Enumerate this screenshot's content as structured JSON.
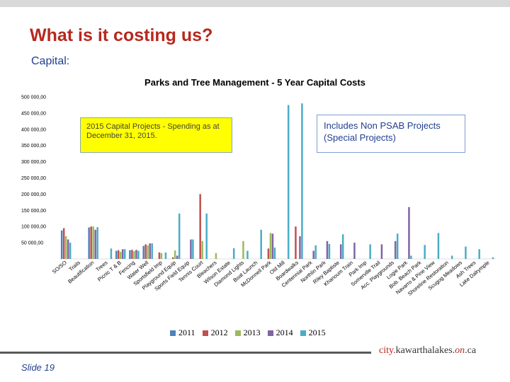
{
  "slide": {
    "title": "What is it costing us?",
    "subtitle": "Capital:",
    "footer_url_prefix": "city.",
    "footer_url_brand": "kawarthalakes",
    "footer_url_mid": ".",
    "footer_url_on": "on",
    "footer_url_suffix": ".ca",
    "slide_number": "Slide 19",
    "callout_left": "2015 Capital Projects - Spending as at December 31, 2015.",
    "callout_right": "Includes Non PSAB Projects (Special Projects)"
  },
  "colors": {
    "title": "#b7281f",
    "text_blue": "#1f3f8f",
    "callout_fill": "#ffff00"
  },
  "chart_data": {
    "type": "bar",
    "title": "Parks and Tree Management - 5 Year Capital Costs",
    "xlabel": "",
    "ylabel": "",
    "ylim": [
      0,
      500000
    ],
    "yticks": [
      "500 000,00",
      "450 000,00",
      "400 000,00",
      "350 000,00",
      "300 000,00",
      "250 000,00",
      "200 000,00",
      "150 000,00",
      "100 000,00",
      "50 000,00"
    ],
    "grid": false,
    "legend_position": "bottom",
    "categories": [
      "SO/SO",
      "Trails",
      "Beautification",
      "Trees",
      "Picnic T & B",
      "Fencing",
      "Water Well",
      "Sportsfield Imp",
      "Playground Equip",
      "Sports Field Equip",
      "Tennis Court",
      "Bleachers",
      "Wilson Estate",
      "Diamond Lights",
      "Boat Launch",
      "McDonnell Park",
      "Old Mill",
      "Boardwalks",
      "Centennial Park",
      "Northlin Park",
      "Riley Baptiste",
      "Khanoum Train",
      "Park Imp",
      "Somerville Trail",
      "Acc. Playgrounds",
      "Logie Park",
      "Bob. Beach Park",
      "Navarro & Pine View",
      "Shoreline Restoration",
      "Scugog Meadows",
      "Ash Trees",
      "Lake Dalrymple"
    ],
    "series": [
      {
        "name": "2011",
        "color": "#4f81bd",
        "values": [
          88000,
          0,
          97000,
          0,
          25000,
          27000,
          40000,
          0,
          0,
          0,
          0,
          0,
          0,
          0,
          0,
          0,
          0,
          0,
          0,
          0,
          0,
          0,
          0,
          0,
          0,
          0,
          0,
          0,
          0,
          0,
          0,
          0
        ]
      },
      {
        "name": "2012",
        "color": "#c0504d",
        "values": [
          95000,
          0,
          100000,
          0,
          27000,
          28000,
          45000,
          20000,
          5000,
          0,
          200000,
          0,
          0,
          0,
          0,
          32000,
          0,
          100000,
          0,
          0,
          0,
          0,
          0,
          0,
          0,
          0,
          0,
          0,
          0,
          0,
          0,
          0
        ]
      },
      {
        "name": "2013",
        "color": "#9bbb59",
        "values": [
          70000,
          0,
          100000,
          0,
          22000,
          24000,
          42000,
          18000,
          26000,
          0,
          55000,
          18000,
          0,
          55000,
          0,
          80000,
          0,
          0,
          0,
          0,
          0,
          0,
          0,
          0,
          0,
          0,
          0,
          0,
          0,
          0,
          0,
          0
        ]
      },
      {
        "name": "2014",
        "color": "#8064a2",
        "values": [
          60000,
          0,
          90000,
          0,
          30000,
          28000,
          48000,
          0,
          10000,
          60000,
          0,
          0,
          0,
          0,
          0,
          78000,
          0,
          70000,
          25000,
          55000,
          45000,
          50000,
          0,
          45000,
          55000,
          160000,
          0,
          0,
          0,
          0,
          0,
          0
        ]
      },
      {
        "name": "2015",
        "color": "#4bacc6",
        "values": [
          50000,
          0,
          98000,
          32000,
          30000,
          25000,
          48000,
          20000,
          140000,
          60000,
          140000,
          0,
          33000,
          25000,
          90000,
          35000,
          475000,
          480000,
          42000,
          46000,
          76000,
          0,
          45000,
          0,
          78000,
          10000,
          43000,
          80000,
          10000,
          38000,
          30000,
          5000
        ]
      }
    ]
  }
}
